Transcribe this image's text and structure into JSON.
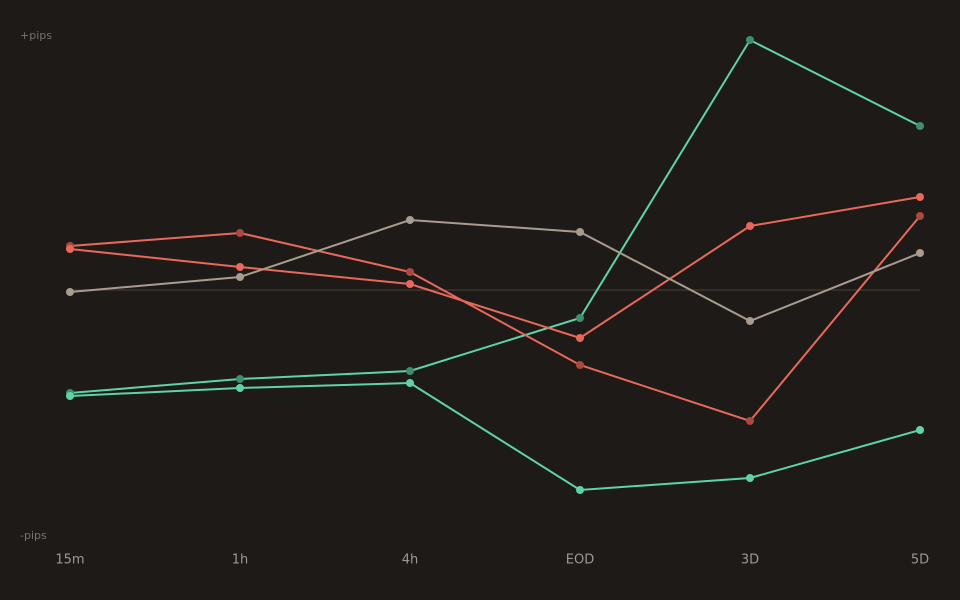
{
  "chart_data": {
    "type": "line",
    "categories": [
      "15m",
      "1h",
      "4h",
      "EOD",
      "3D",
      "5D"
    ],
    "ylim": [
      -100,
      100
    ],
    "yticks": [
      {
        "value": 100,
        "label": "+pips"
      },
      {
        "value": -100,
        "label": "-pips"
      }
    ],
    "series": [
      {
        "color": "#5fd3a8",
        "marker_color": "#3f8f6c",
        "values": [
          -41.2,
          -35.6,
          -32.4,
          -11.2,
          100,
          65.6
        ]
      },
      {
        "color": "#5fd3a8",
        "marker_color": "#5fd3a8",
        "values": [
          -42.4,
          -39.2,
          -37.2,
          -80,
          -75.2,
          -56
        ]
      },
      {
        "color": "#e8695c",
        "marker_color": "#a9493f",
        "values": [
          17.6,
          22.8,
          7.2,
          -30,
          -52.4,
          29.6
        ]
      },
      {
        "color": "#e8695c",
        "marker_color": "#e8695c",
        "values": [
          16.4,
          9.2,
          2.4,
          -19.2,
          25.6,
          37.2
        ]
      },
      {
        "color": "#a89c90",
        "marker_color": "#a89c90",
        "values": [
          -0.8,
          5.2,
          28,
          23.2,
          -12.4,
          14.8
        ]
      }
    ]
  }
}
